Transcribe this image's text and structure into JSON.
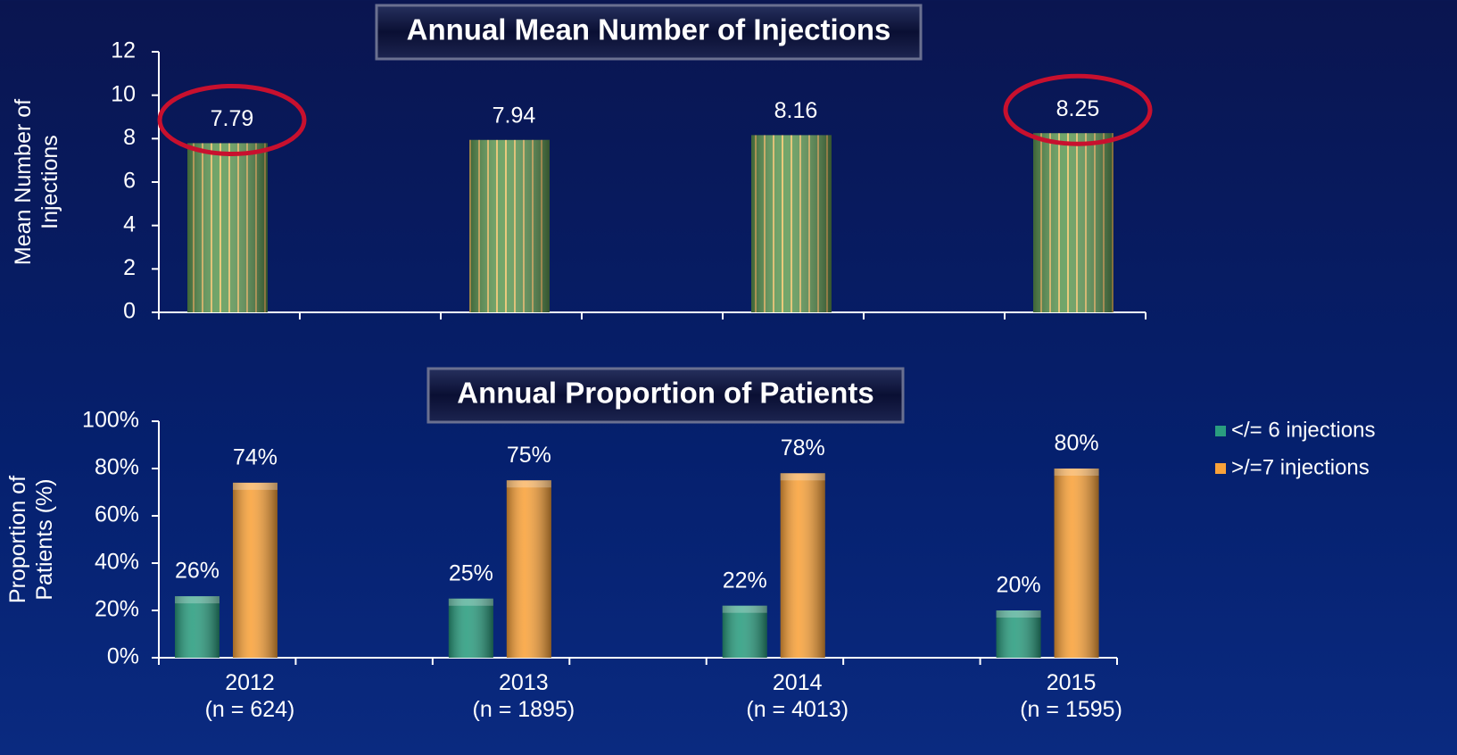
{
  "chart_data": [
    {
      "type": "bar",
      "title": "Annual Mean Number of Injections",
      "y_label": "Mean Number of Injections",
      "categories": [
        null,
        null,
        null,
        null
      ],
      "values": [
        7.79,
        7.94,
        8.16,
        8.25
      ],
      "color": "#5f9a55",
      "stripe_color": "#e8c46a",
      "ylim": [
        0,
        12
      ],
      "yticks": [
        0,
        2,
        4,
        6,
        8,
        10,
        12
      ],
      "highlighted": [
        0,
        3
      ],
      "highlight_color": "#c8102e"
    },
    {
      "type": "grouped_bar",
      "title": "Annual Proportion of Patients",
      "y_label": "Proportion of Patients (%)",
      "categories": [
        "2012\n(n = 624)",
        "2013\n(n = 1895)",
        "2014\n(n = 4013)",
        "2015\n(n = 1595)"
      ],
      "series": [
        {
          "name": "</= 6 injections",
          "color": "#2a9d7f",
          "values": [
            26,
            25,
            22,
            20
          ],
          "value_labels": [
            "26%",
            "25%",
            "22%",
            "20%"
          ]
        },
        {
          "name": ">/=7 injections",
          "color": "#f9a23a",
          "values": [
            74,
            75,
            78,
            80
          ],
          "value_labels": [
            "74%",
            "75%",
            "78%",
            "80%"
          ]
        }
      ],
      "ylim": [
        0,
        100
      ],
      "yticks": [
        {
          "value": 0,
          "label": "0%"
        },
        {
          "value": 20,
          "label": "20%"
        },
        {
          "value": 40,
          "label": "40%"
        },
        {
          "value": 60,
          "label": "60%"
        },
        {
          "value": 80,
          "label": "80%"
        },
        {
          "value": 100,
          "label": "100%"
        }
      ],
      "legend": "right"
    }
  ]
}
